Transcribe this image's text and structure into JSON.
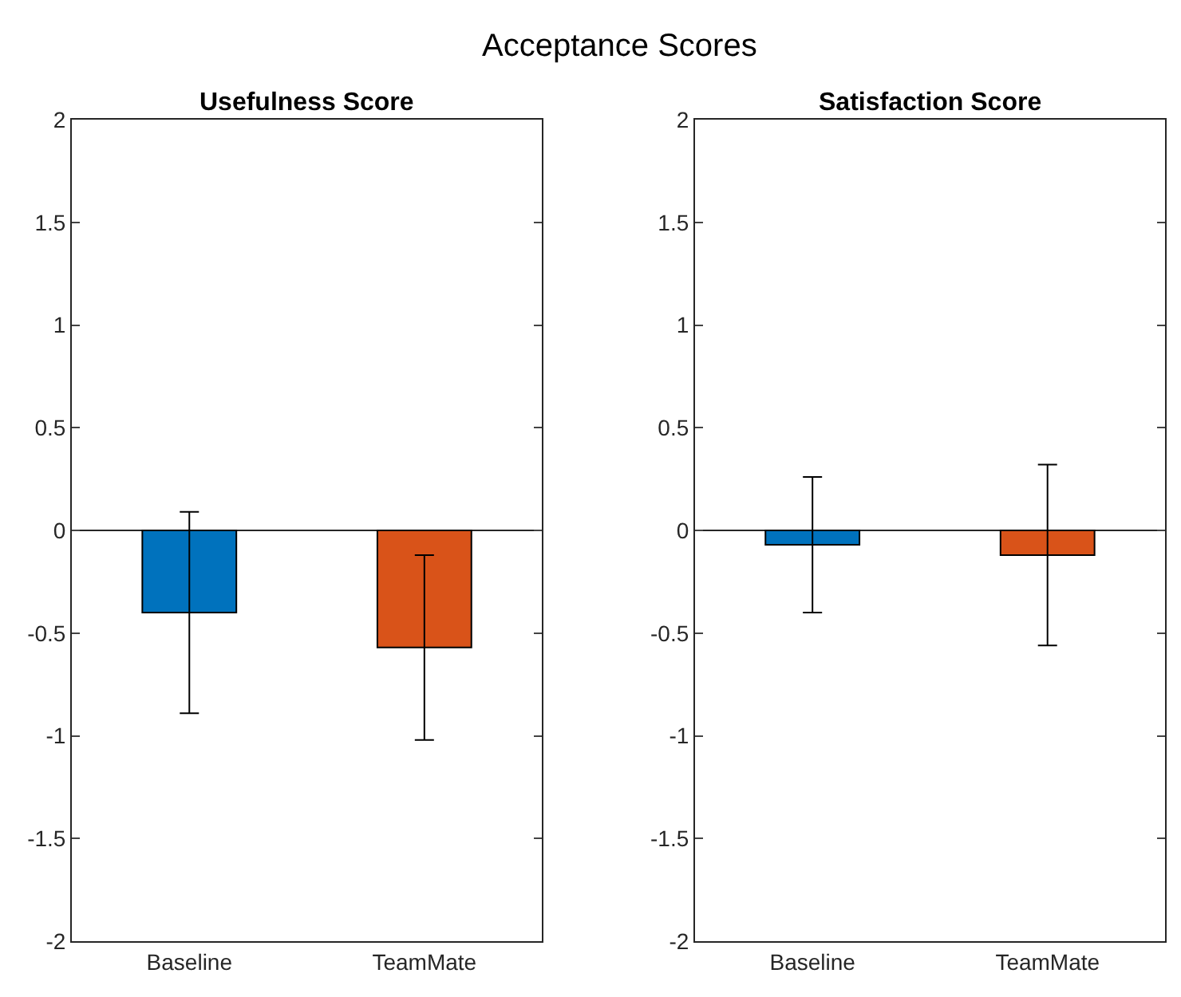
{
  "chart_data": [
    {
      "type": "bar",
      "title": "Usefulness Score",
      "annotations": [
        "Acceptance Scores"
      ],
      "categories": [
        "Baseline",
        "TeamMate"
      ],
      "values": [
        -0.4,
        -0.57
      ],
      "colors": [
        "#0072bd",
        "#d95319"
      ],
      "errors": [
        0.49,
        0.45
      ],
      "ylim": [
        -2,
        2
      ],
      "yticks": [
        -2,
        -1.5,
        -1,
        -0.5,
        0,
        0.5,
        1,
        1.5,
        2
      ],
      "ref_lines": [
        {
          "axis": "y",
          "value": 0,
          "color": "#262626"
        }
      ]
    },
    {
      "type": "bar",
      "title": "Satisfaction Score",
      "categories": [
        "Baseline",
        "TeamMate"
      ],
      "values": [
        -0.07,
        -0.12
      ],
      "colors": [
        "#0072bd",
        "#d95319"
      ],
      "errors": [
        0.33,
        0.44
      ],
      "ylim": [
        -2,
        2
      ],
      "yticks": [
        -2,
        -1.5,
        -1,
        -0.5,
        0,
        0.5,
        1,
        1.5,
        2
      ],
      "ref_lines": [
        {
          "axis": "y",
          "value": 0,
          "color": "#262626"
        }
      ]
    }
  ]
}
